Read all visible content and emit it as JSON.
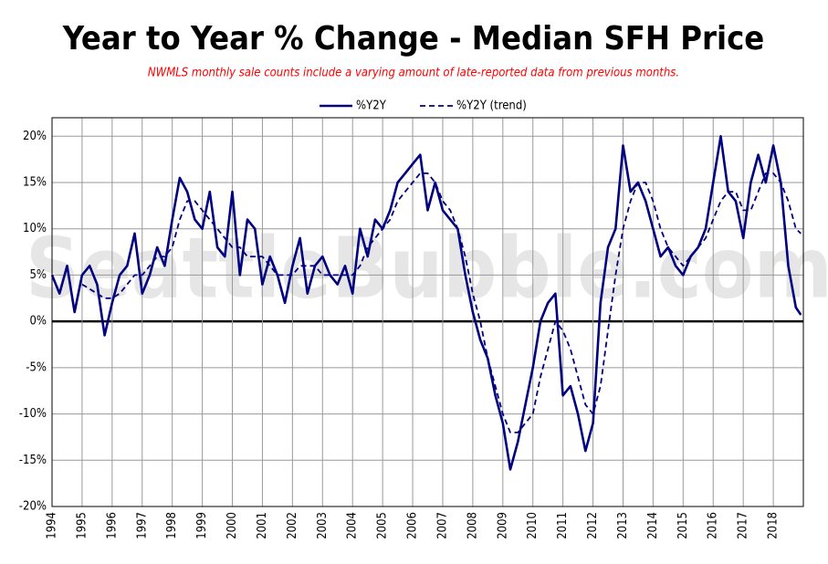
{
  "chart_data": {
    "type": "line",
    "title": "Year to Year % Change - Median SFH Price",
    "subtitle": "NWMLS monthly sale counts include a varying amount of late-reported  data from previous months.",
    "watermark": "SeattleBubble.com",
    "x": [
      1994,
      1994.25,
      1994.5,
      1994.75,
      1995,
      1995.25,
      1995.5,
      1995.75,
      1996,
      1996.25,
      1996.5,
      1996.75,
      1997,
      1997.25,
      1997.5,
      1997.75,
      1998,
      1998.25,
      1998.5,
      1998.75,
      1999,
      1999.25,
      1999.5,
      1999.75,
      2000,
      2000.25,
      2000.5,
      2000.75,
      2001,
      2001.25,
      2001.5,
      2001.75,
      2002,
      2002.25,
      2002.5,
      2002.75,
      2003,
      2003.25,
      2003.5,
      2003.75,
      2004,
      2004.25,
      2004.5,
      2004.75,
      2005,
      2005.25,
      2005.5,
      2005.75,
      2006,
      2006.25,
      2006.5,
      2006.75,
      2007,
      2007.25,
      2007.5,
      2007.75,
      2008,
      2008.25,
      2008.5,
      2008.75,
      2009,
      2009.25,
      2009.5,
      2009.75,
      2010,
      2010.25,
      2010.5,
      2010.75,
      2011,
      2011.25,
      2011.5,
      2011.75,
      2012,
      2012.25,
      2012.5,
      2012.75,
      2013,
      2013.25,
      2013.5,
      2013.75,
      2014,
      2014.25,
      2014.5,
      2014.75,
      2015,
      2015.25,
      2015.5,
      2015.75,
      2016,
      2016.25,
      2016.5,
      2016.75,
      2017,
      2017.25,
      2017.5,
      2017.75,
      2018,
      2018.25,
      2018.5,
      2018.75,
      2018.917
    ],
    "series": [
      {
        "name": "%Y2Y",
        "color": "#000080",
        "dash": false,
        "values": [
          5,
          3,
          6,
          1,
          5,
          6,
          4,
          -1.5,
          2,
          5,
          6,
          9.5,
          3,
          5,
          8,
          6,
          11,
          15.5,
          14,
          11,
          10,
          14,
          8,
          7,
          14,
          5,
          11,
          10,
          4,
          7,
          5,
          2,
          6,
          9,
          3,
          6,
          7,
          5,
          4,
          6,
          3,
          10,
          7,
          11,
          10,
          12,
          15,
          16,
          17,
          18,
          12,
          15,
          12,
          11,
          10,
          5,
          1,
          -2,
          -4,
          -8,
          -11,
          -16,
          -13,
          -9,
          -5,
          0,
          2,
          3,
          -8,
          -7,
          -10,
          -14,
          -11,
          2,
          8,
          10,
          19,
          14,
          15,
          13,
          10,
          7,
          8,
          6,
          5,
          7,
          8,
          10,
          15,
          20,
          14,
          13,
          9,
          15,
          18,
          15,
          19,
          15,
          6,
          1.5,
          0.7
        ]
      },
      {
        "name": "%Y2Y (trend)",
        "color": "#000080",
        "dash": true,
        "values": [
          null,
          null,
          null,
          null,
          4,
          3.5,
          3,
          2.5,
          2.5,
          3,
          4,
          5,
          5,
          6,
          7,
          7,
          8,
          11,
          13,
          13,
          12,
          11,
          10,
          9,
          8,
          8,
          7,
          7,
          7,
          6,
          5,
          5,
          5,
          6,
          6,
          6,
          5,
          5,
          5,
          5,
          5,
          6,
          8,
          9,
          10,
          11,
          13,
          14,
          15,
          16,
          16,
          15,
          13,
          12,
          10,
          7,
          3,
          0,
          -4,
          -7,
          -10,
          -12,
          -12,
          -11,
          -10,
          -6,
          -3,
          0,
          -1,
          -3,
          -6,
          -9,
          -10,
          -7,
          -1,
          5,
          10,
          13,
          15,
          15,
          13,
          10,
          8,
          7,
          6,
          7,
          8,
          9,
          11,
          13,
          14,
          14,
          12,
          12,
          14,
          16,
          16,
          15,
          13,
          10,
          9.5
        ]
      }
    ],
    "xlim": [
      1994,
      2019
    ],
    "xticks": [
      1994,
      1995,
      1996,
      1997,
      1998,
      1999,
      2000,
      2001,
      2002,
      2003,
      2004,
      2005,
      2006,
      2007,
      2008,
      2009,
      2010,
      2011,
      2012,
      2013,
      2014,
      2015,
      2016,
      2017,
      2018
    ],
    "ylim": [
      -20,
      22
    ],
    "yticks": [
      {
        "value": -20,
        "label": "-20%"
      },
      {
        "value": -15,
        "label": "-15%"
      },
      {
        "value": -10,
        "label": "-10%"
      },
      {
        "value": -5,
        "label": "-5%"
      },
      {
        "value": 0,
        "label": "0%"
      },
      {
        "value": 5,
        "label": "5%"
      },
      {
        "value": 10,
        "label": "10%"
      },
      {
        "value": 15,
        "label": "15%"
      },
      {
        "value": 20,
        "label": "20%"
      }
    ],
    "grid": true,
    "legend": "top"
  }
}
